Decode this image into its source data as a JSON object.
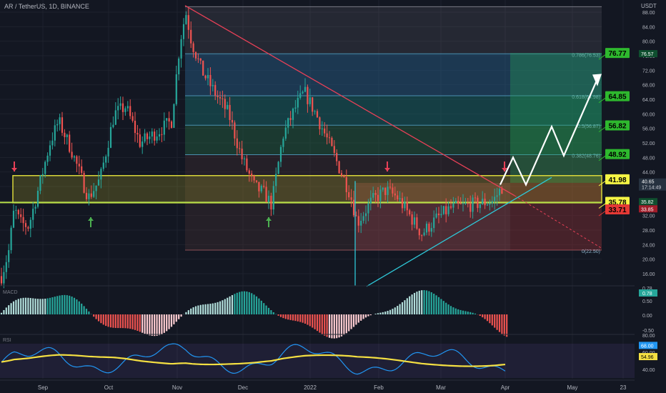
{
  "header": {
    "symbol": "AR / TetherUS, 1D, BINANCE",
    "currency": "USDT"
  },
  "panes": {
    "macd_label": "MACD",
    "rsi_label": "RSI"
  },
  "chart_data": {
    "type": "candlestick",
    "price_axis": {
      "ticks": [
        88.0,
        84.0,
        80.0,
        76.0,
        72.0,
        68.0,
        64.0,
        60.0,
        56.0,
        52.0,
        48.0,
        44.0,
        40.0,
        36.0,
        32.0,
        28.0,
        24.0,
        20.0,
        16.0
      ],
      "range": [
        12,
        90
      ]
    },
    "time_axis": {
      "labels": [
        "Sep",
        "Oct",
        "Nov",
        "Dec",
        "2022",
        "Feb",
        "Mar",
        "Apr",
        "May",
        "23"
      ]
    },
    "last_price": {
      "value": "40.65",
      "countdown": "17:14:49"
    },
    "axis_tags": [
      {
        "value": "76.57",
        "color": "#ffffff",
        "bg": "#0f4f2f"
      },
      {
        "value": "35.82",
        "color": "#ffffff",
        "bg": "#0f4f2f"
      },
      {
        "value": "33.85",
        "color": "#ffffff",
        "bg": "#a11d2a"
      }
    ],
    "fib_levels": [
      {
        "label": "0.786(76.53)",
        "price": 76.53
      },
      {
        "label": "0.618(64.98)",
        "price": 64.98
      },
      {
        "label": "0.5(56.87)",
        "price": 56.87
      },
      {
        "label": "0.382(48.76)",
        "price": 48.76
      },
      {
        "label": "0(22.50)",
        "price": 22.5
      }
    ],
    "targets": [
      {
        "value": "76.77",
        "price": 76.77,
        "bg": "#2eb82e",
        "fg": "#000000"
      },
      {
        "value": "64.85",
        "price": 64.85,
        "bg": "#2eb82e",
        "fg": "#000000"
      },
      {
        "value": "56.82",
        "price": 56.82,
        "bg": "#2eb82e",
        "fg": "#000000"
      },
      {
        "value": "48.92",
        "price": 48.92,
        "bg": "#2eb82e",
        "fg": "#000000"
      },
      {
        "value": "41.98",
        "price": 41.98,
        "bg": "#f5f545",
        "fg": "#000000"
      },
      {
        "value": "35.78",
        "price": 35.78,
        "bg": "#f5f545",
        "fg": "#000000"
      },
      {
        "value": "33.71",
        "price": 33.71,
        "bg": "#e53935",
        "fg": "#000000"
      }
    ],
    "zones": {
      "resistance_top": 43.0,
      "resistance_bottom": 35.5
    },
    "projection_path": [
      [
        700,
        40.5
      ],
      [
        718,
        48.0
      ],
      [
        736,
        40.5
      ],
      [
        772,
        56.5
      ],
      [
        789,
        48.5
      ],
      [
        838,
        70.5
      ]
    ],
    "macd": {
      "axis_ticks": [
        "0.78",
        "0.50",
        "0.00",
        "-0.50"
      ],
      "current": "0.78"
    },
    "rsi": {
      "axis_ticks": [
        "80.00",
        "60.00",
        "40.00"
      ],
      "current": "68.00",
      "ma_current": "54.96"
    },
    "colors": {
      "up": "#26a69a",
      "down": "#ef5350",
      "background": "#131722",
      "trendline_down": "#e84057",
      "trendline_up": "#2ec8d8"
    }
  }
}
